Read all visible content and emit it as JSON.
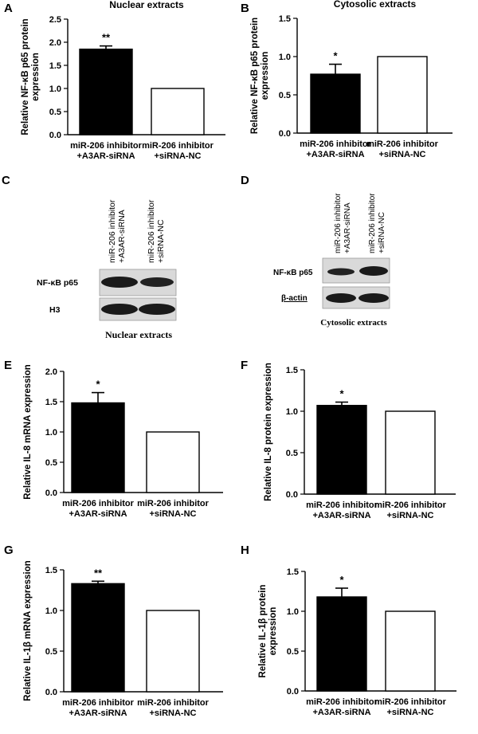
{
  "panel_letters": [
    "A",
    "B",
    "C",
    "D",
    "E",
    "F",
    "G",
    "H"
  ],
  "chart_data": [
    {
      "panel": "A",
      "type": "bar",
      "title": "Nuclear extracts",
      "ylabel": "Relative NF-κB p65 protein expression",
      "categories": [
        "miR-206 inhibitor\n+A3AR-siRNA",
        "miR-206 inhibitor\n+siRNA-NC"
      ],
      "values": [
        1.85,
        1.0
      ],
      "errors": [
        0.07,
        0
      ],
      "significance": [
        "**",
        ""
      ],
      "fills": [
        "#000000",
        "#ffffff"
      ],
      "ylim": [
        0,
        2.5
      ],
      "yticks": [
        "0.0",
        "0.5",
        "1.0",
        "1.5",
        "2.0",
        "2.5"
      ]
    },
    {
      "panel": "B",
      "type": "bar",
      "title": "Cytosolic extracts",
      "ylabel": "Relative NF-κB p65 protein expression",
      "categories": [
        "miR-206 inhibitor\n+A3AR-siRNA",
        "miR-206 inhibitor\n+siRNA-NC"
      ],
      "values": [
        0.77,
        1.0
      ],
      "errors": [
        0.13,
        0
      ],
      "significance": [
        "*",
        ""
      ],
      "fills": [
        "#000000",
        "#ffffff"
      ],
      "ylim": [
        0,
        1.5
      ],
      "yticks": [
        "0.0",
        "0.5",
        "1.0",
        "1.5"
      ]
    },
    {
      "panel": "E",
      "type": "bar",
      "title": "",
      "ylabel": "Relative IL-8 mRNA expression",
      "categories": [
        "miR-206 inhibitor\n+A3AR-siRNA",
        "miR-206 inhibitor\n+siRNA-NC"
      ],
      "values": [
        1.48,
        1.0
      ],
      "errors": [
        0.17,
        0
      ],
      "significance": [
        "*",
        ""
      ],
      "fills": [
        "#000000",
        "#ffffff"
      ],
      "ylim": [
        0,
        2.0
      ],
      "yticks": [
        "0.0",
        "0.5",
        "1.0",
        "1.5",
        "2.0"
      ]
    },
    {
      "panel": "F",
      "type": "bar",
      "title": "",
      "ylabel": "Relative IL-8 protein expression",
      "categories": [
        "miR-206 inhibitor\n+A3AR-siRNA",
        "miR-206 inhibitor\n+siRNA-NC"
      ],
      "values": [
        1.07,
        1.0
      ],
      "errors": [
        0.04,
        0
      ],
      "significance": [
        "*",
        ""
      ],
      "fills": [
        "#000000",
        "#ffffff"
      ],
      "ylim": [
        0,
        1.5
      ],
      "yticks": [
        "0.0",
        "0.5",
        "1.0",
        "1.5"
      ]
    },
    {
      "panel": "G",
      "type": "bar",
      "title": "",
      "ylabel": "Relative IL-1β  mRNA expression",
      "categories": [
        "miR-206 inhibitor\n+A3AR-siRNA",
        "miR-206 inhibitor\n+siRNA-NC"
      ],
      "values": [
        1.33,
        1.0
      ],
      "errors": [
        0.03,
        0
      ],
      "significance": [
        "**",
        ""
      ],
      "fills": [
        "#000000",
        "#ffffff"
      ],
      "ylim": [
        0,
        1.5
      ],
      "yticks": [
        "0.0",
        "0.5",
        "1.0",
        "1.5"
      ]
    },
    {
      "panel": "H",
      "type": "bar",
      "title": "",
      "ylabel": "Relative IL-1β  protein expression",
      "categories": [
        "miR-206 inhibitor\n+A3AR-siRNA",
        "miR-206 inhibitor\n+siRNA-NC"
      ],
      "values": [
        1.18,
        1.0
      ],
      "errors": [
        0.11,
        0
      ],
      "significance": [
        "*",
        ""
      ],
      "fills": [
        "#000000",
        "#ffffff"
      ],
      "ylim": [
        0,
        1.5
      ],
      "yticks": [
        "0.0",
        "0.5",
        "1.0",
        "1.5"
      ]
    }
  ],
  "western_blots": [
    {
      "panel": "C",
      "lanes": [
        "miR-206 inhibitor\n+A3AR-siRNA",
        "miR-206 inhibitor\n+siRNA-NC"
      ],
      "rows": [
        "NF-κB p65",
        "H3"
      ],
      "caption": "Nuclear extracts"
    },
    {
      "panel": "D",
      "lanes": [
        "miR-206 inhibitor\n+A3AR-siRNA",
        "miR-206 inhibitor\n+siRNA-NC"
      ],
      "rows": [
        "NF-κB p65",
        "β-actin"
      ],
      "caption": "Cytosolic extracts"
    }
  ]
}
